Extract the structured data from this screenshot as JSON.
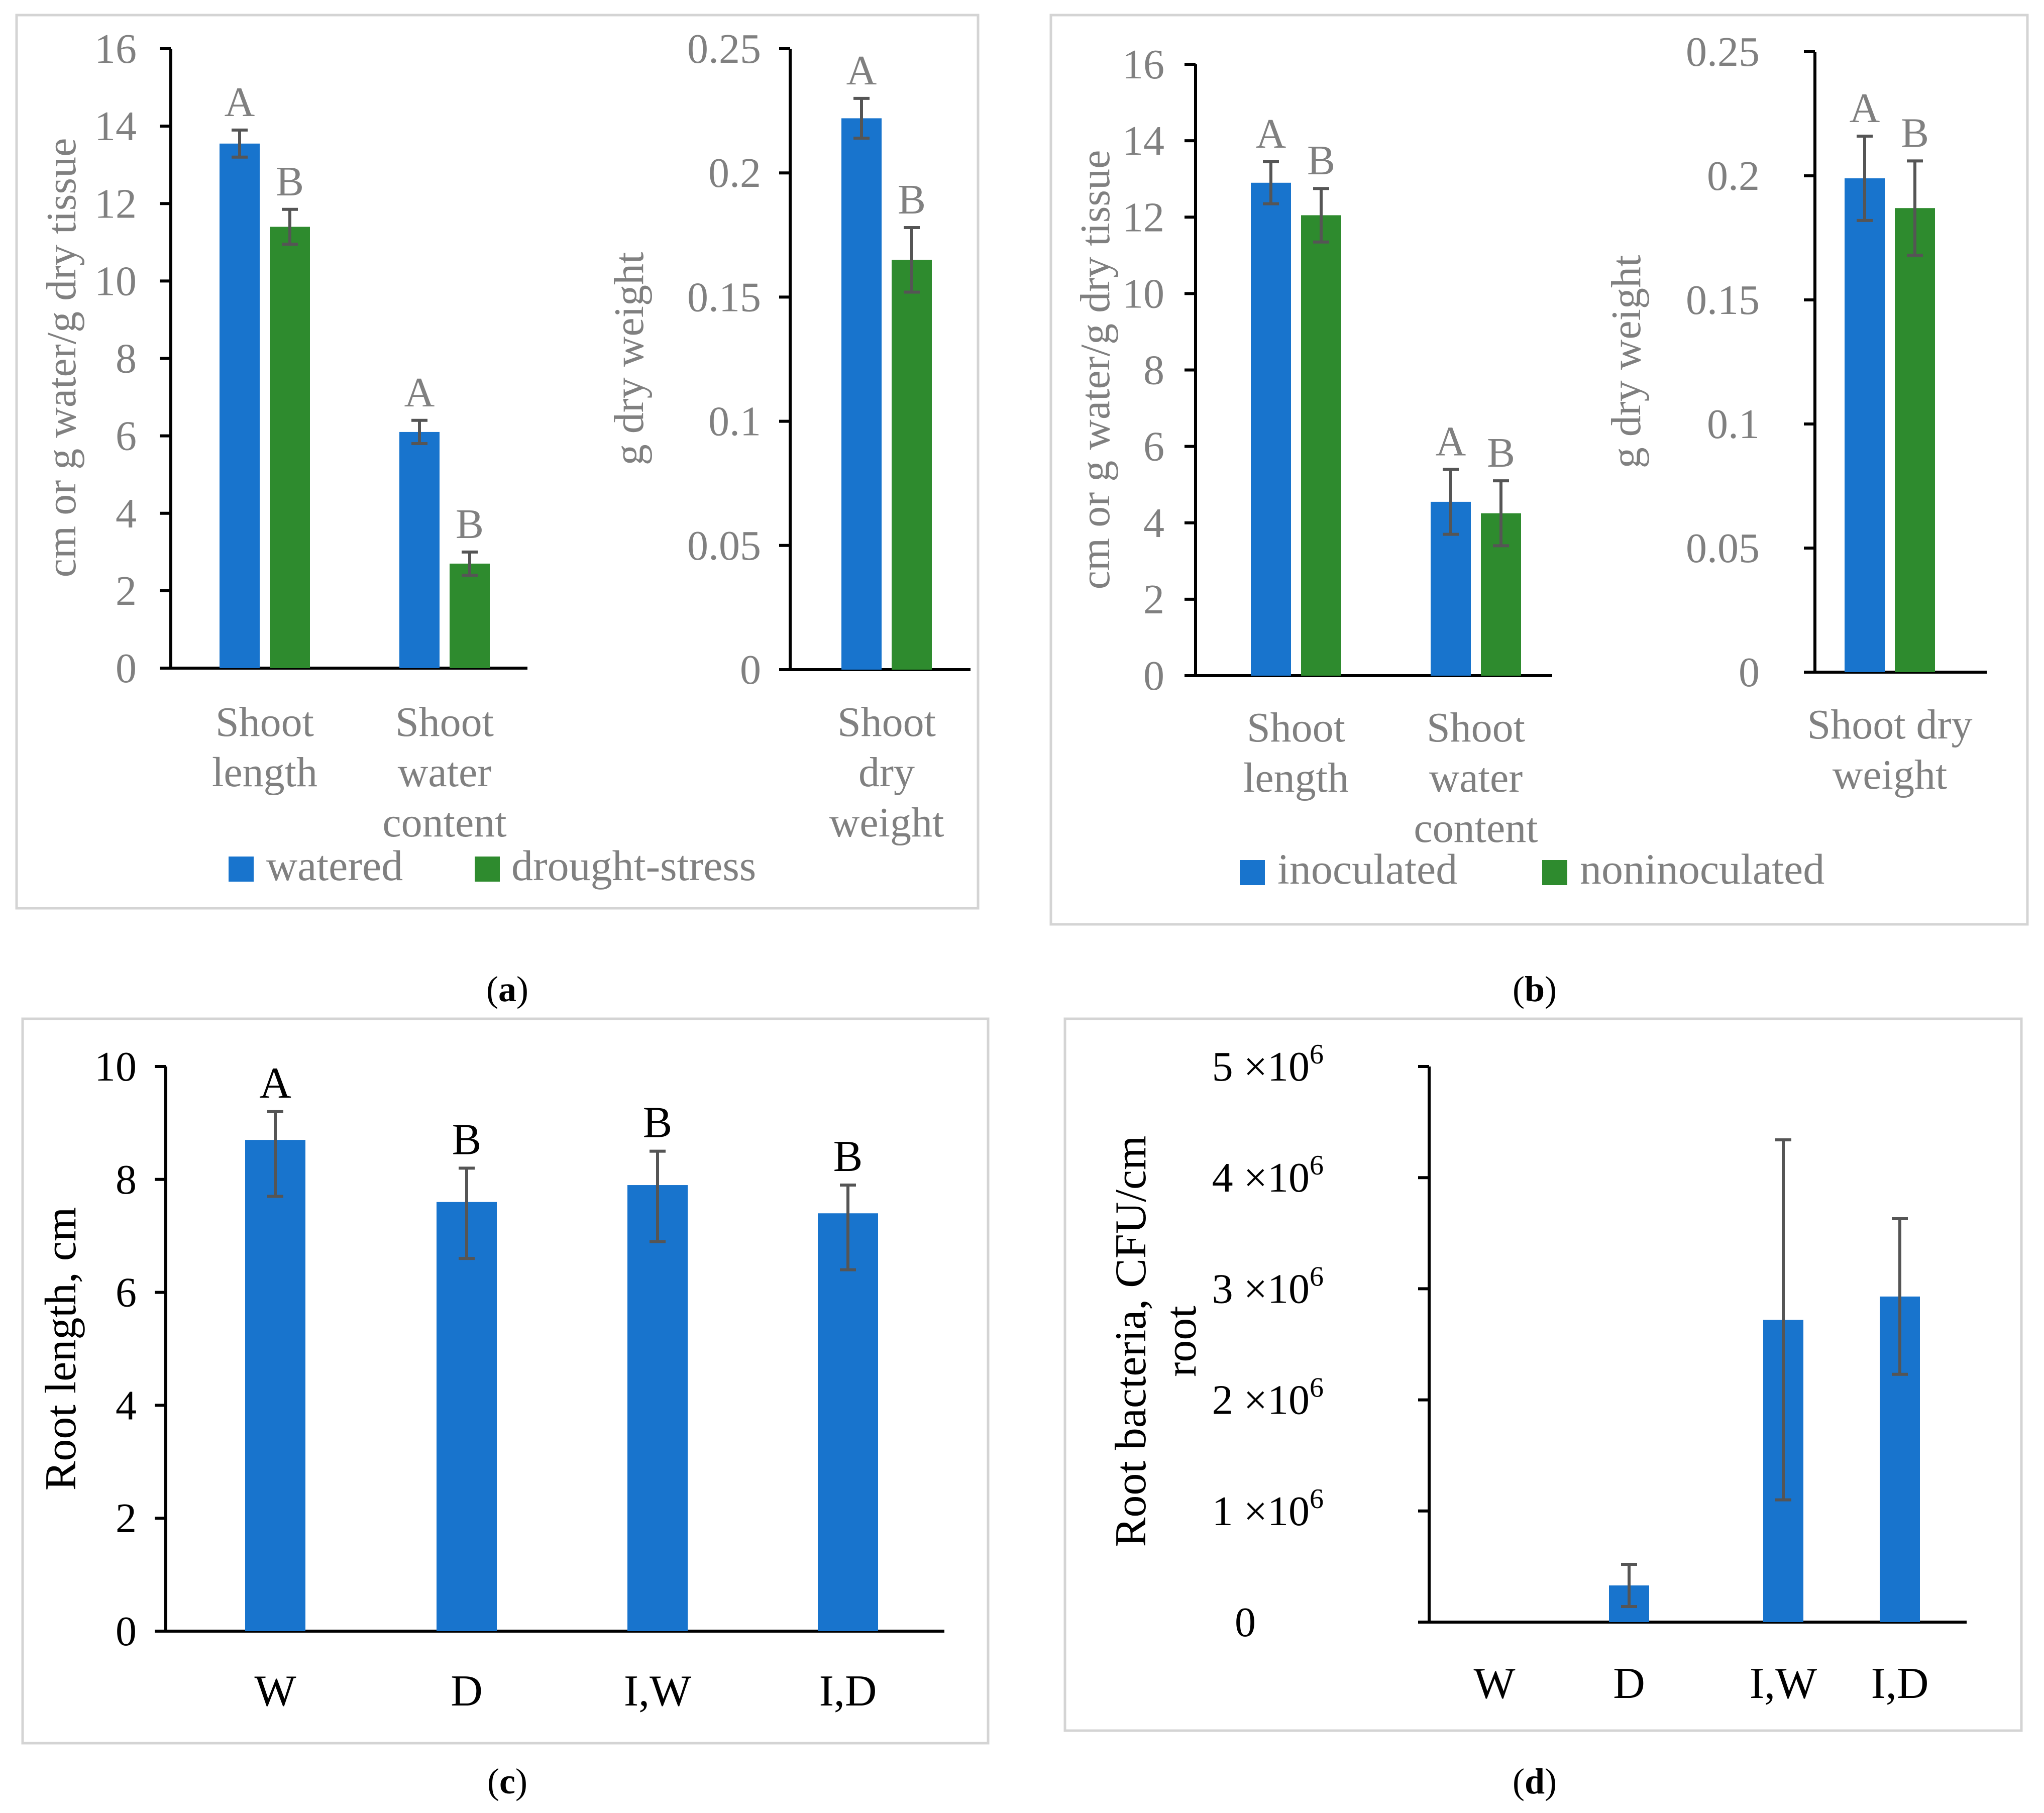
{
  "colors": {
    "blue": "#1874cd",
    "green": "#2e8b2e",
    "frame": "#d4d4d4",
    "grey_text": "#808080",
    "error_bar": "#555555"
  },
  "chart_data": [
    {
      "type": "bar",
      "panel_label": "a",
      "text_color": "grey",
      "legend": {
        "placement": "bottom",
        "entries": [
          "watered",
          "drought-stress"
        ]
      },
      "subplots": [
        {
          "ylabel": "cm or g water/g dry tissue",
          "ylim": [
            0,
            16
          ],
          "yticks": [
            0,
            2,
            4,
            6,
            8,
            10,
            12,
            14,
            16
          ],
          "categories": [
            "Shoot length",
            "Shoot water content"
          ],
          "category_lines": [
            [
              "Shoot",
              "length"
            ],
            [
              "Shoot",
              "water",
              "content"
            ]
          ],
          "series": [
            {
              "name": "watered",
              "color": "blue",
              "values": [
                13.55,
                6.1
              ],
              "errors": [
                0.35,
                0.3
              ],
              "letters": [
                "A",
                "A"
              ]
            },
            {
              "name": "drought-stress",
              "color": "green",
              "values": [
                11.4,
                2.7
              ],
              "errors": [
                0.45,
                0.3
              ],
              "letters": [
                "B",
                "B"
              ]
            }
          ]
        },
        {
          "ylabel": "g dry weight",
          "ylim": [
            0,
            0.25
          ],
          "yticks": [
            0,
            0.05,
            0.1,
            0.15,
            0.2,
            0.25
          ],
          "ytick_labels": [
            "0",
            "0.05",
            "0.1",
            "0.15",
            "0.2",
            "0.25"
          ],
          "categories": [
            "Shoot dry weight"
          ],
          "category_lines": [
            [
              "Shoot",
              "dry",
              "weight"
            ]
          ],
          "series": [
            {
              "name": "watered",
              "color": "blue",
              "values": [
                0.222
              ],
              "errors": [
                0.008
              ],
              "letters": [
                "A"
              ]
            },
            {
              "name": "drought-stress",
              "color": "green",
              "values": [
                0.165
              ],
              "errors": [
                0.013
              ],
              "letters": [
                "B"
              ]
            }
          ]
        }
      ]
    },
    {
      "type": "bar",
      "panel_label": "b",
      "text_color": "grey",
      "legend": {
        "placement": "bottom",
        "entries": [
          "inoculated",
          "noninoculated"
        ]
      },
      "subplots": [
        {
          "ylabel": "cm or g water/g dry tissue",
          "ylim": [
            0,
            16
          ],
          "yticks": [
            0,
            2,
            4,
            6,
            8,
            10,
            12,
            14,
            16
          ],
          "categories": [
            "Shoot length",
            "Shoot water content"
          ],
          "category_lines": [
            [
              "Shoot",
              "length"
            ],
            [
              "Shoot",
              "water",
              "content"
            ]
          ],
          "series": [
            {
              "name": "inoculated",
              "color": "blue",
              "values": [
                12.9,
                4.55
              ],
              "errors": [
                0.55,
                0.85
              ],
              "letters": [
                "A",
                "A"
              ]
            },
            {
              "name": "noninoculated",
              "color": "green",
              "values": [
                12.05,
                4.25
              ],
              "errors": [
                0.7,
                0.85
              ],
              "letters": [
                "B",
                "B"
              ]
            }
          ]
        },
        {
          "ylabel": "g dry  weight",
          "ylim": [
            0,
            0.25
          ],
          "yticks": [
            0,
            0.05,
            0.1,
            0.15,
            0.2,
            0.25
          ],
          "ytick_labels": [
            "0",
            "0.05",
            "0.1",
            "0.15",
            "0.2",
            "0.25"
          ],
          "categories": [
            "Shoot dry weight"
          ],
          "category_lines": [
            [
              "Shoot dry",
              "weight"
            ]
          ],
          "series": [
            {
              "name": "inoculated",
              "color": "blue",
              "values": [
                0.199
              ],
              "errors": [
                0.017
              ],
              "letters": [
                "A"
              ]
            },
            {
              "name": "noninoculated",
              "color": "green",
              "values": [
                0.187
              ],
              "errors": [
                0.019
              ],
              "letters": [
                "B"
              ]
            }
          ]
        }
      ]
    },
    {
      "type": "bar",
      "panel_label": "c",
      "text_color": "black",
      "legend": null,
      "subplots": [
        {
          "ylabel": "Root length, cm",
          "ylim": [
            0,
            10
          ],
          "yticks": [
            0,
            2,
            4,
            6,
            8,
            10
          ],
          "categories": [
            "W",
            "D",
            "I,W",
            "I,D"
          ],
          "series": [
            {
              "color": "blue",
              "values": [
                8.7,
                7.6,
                7.9,
                7.4
              ],
              "errors": [
                0.5,
                0.6,
                0.6,
                0.5
              ],
              "errors_low": [
                1.0,
                1.0,
                1.0,
                1.0
              ],
              "letters": [
                "A",
                "B",
                "B",
                "B"
              ]
            }
          ]
        }
      ]
    },
    {
      "type": "bar",
      "panel_label": "d",
      "text_color": "black",
      "legend": null,
      "subplots": [
        {
          "ylabel_lines": [
            "Root bacteria, CFU/cm",
            "root"
          ],
          "ylim": [
            0,
            5000000
          ],
          "yticks": [
            0,
            1000000,
            2000000,
            3000000,
            4000000,
            5000000
          ],
          "ytick_labels": [
            "0",
            "1 ×10",
            "2 ×10",
            "3 ×10",
            "4 ×10",
            "5 ×10"
          ],
          "ytick_exponent": "6",
          "categories": [
            "W",
            "D",
            "I,W",
            "I,D"
          ],
          "series": [
            {
              "color": "blue",
              "values": [
                0,
                330000,
                2720000,
                2930000
              ],
              "errors": [
                0,
                190000,
                1620000,
                700000
              ]
            }
          ]
        }
      ]
    }
  ]
}
